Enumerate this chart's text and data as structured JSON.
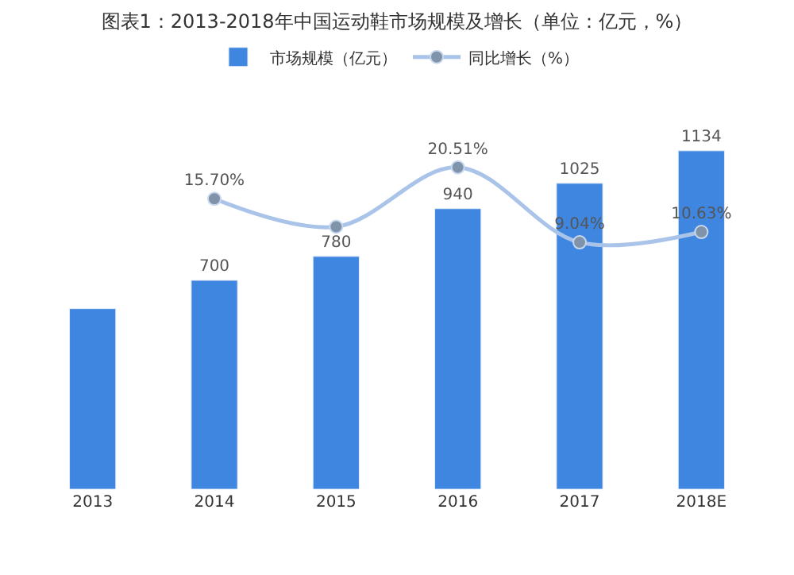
{
  "chart_data": {
    "type": "bar",
    "title": "图表1：2013-2018年中国运动鞋市场规模及增长（单位：亿元，%）",
    "categories": [
      "2013",
      "2014",
      "2015",
      "2016",
      "2017",
      "2018E"
    ],
    "series": [
      {
        "name": "市场规模（亿元）",
        "color": "#3f86e0",
        "values": [
          605,
          700,
          780,
          940,
          1025,
          1134
        ],
        "value_labels": [
          null,
          "700",
          "780",
          "940",
          "1025",
          "1134"
        ]
      },
      {
        "name": "同比增长（%）",
        "type": "line",
        "axis": "y2",
        "color": "#a9c4e8",
        "values": [
          null,
          15.7,
          11.43,
          20.51,
          9.04,
          10.63
        ],
        "value_labels": [
          null,
          "15.70%",
          null,
          "20.51%",
          "9.04%",
          "10.63%"
        ]
      }
    ],
    "tick_labels": "x",
    "legend": "top",
    "marker": "circle"
  }
}
